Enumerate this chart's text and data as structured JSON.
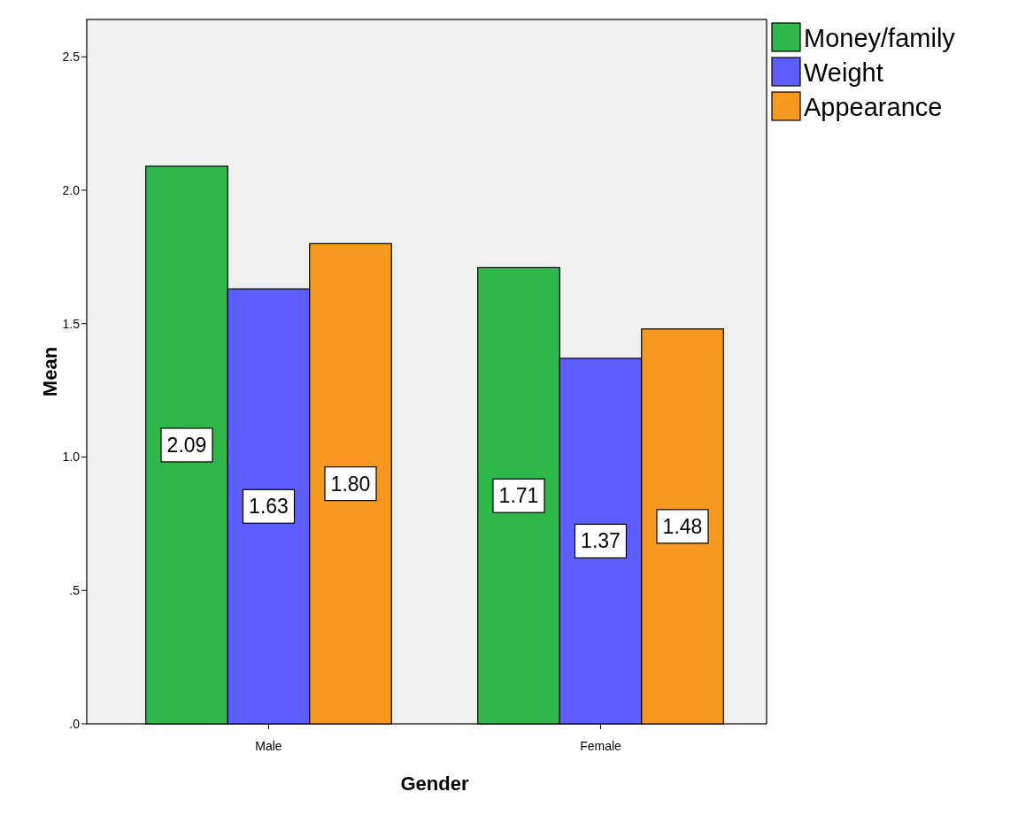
{
  "chart_data": {
    "type": "bar",
    "xlabel": "Gender",
    "ylabel": "Mean",
    "categories": [
      "Male",
      "Female"
    ],
    "series": [
      {
        "name": "Money/family",
        "color": "#2fb84a",
        "values": [
          2.09,
          1.71
        ],
        "value_labels": [
          "2.09",
          "1.71"
        ]
      },
      {
        "name": "Weight",
        "color": "#5c5cff",
        "values": [
          1.63,
          1.37
        ],
        "value_labels": [
          "1.63",
          "1.37"
        ]
      },
      {
        "name": "Appearance",
        "color": "#f7981f",
        "values": [
          1.8,
          1.48
        ],
        "value_labels": [
          "1.80",
          "1.48"
        ]
      }
    ],
    "ylim": [
      0,
      2.64
    ],
    "yticks": [
      {
        "value": 0,
        "label": ".0"
      },
      {
        "value": 0.5,
        "label": ".5"
      },
      {
        "value": 1,
        "label": "1.0"
      },
      {
        "value": 1.5,
        "label": "1.5"
      },
      {
        "value": 2,
        "label": "2.0"
      },
      {
        "value": 2.5,
        "label": "2.5"
      }
    ],
    "grid": false,
    "legend": "top right"
  }
}
